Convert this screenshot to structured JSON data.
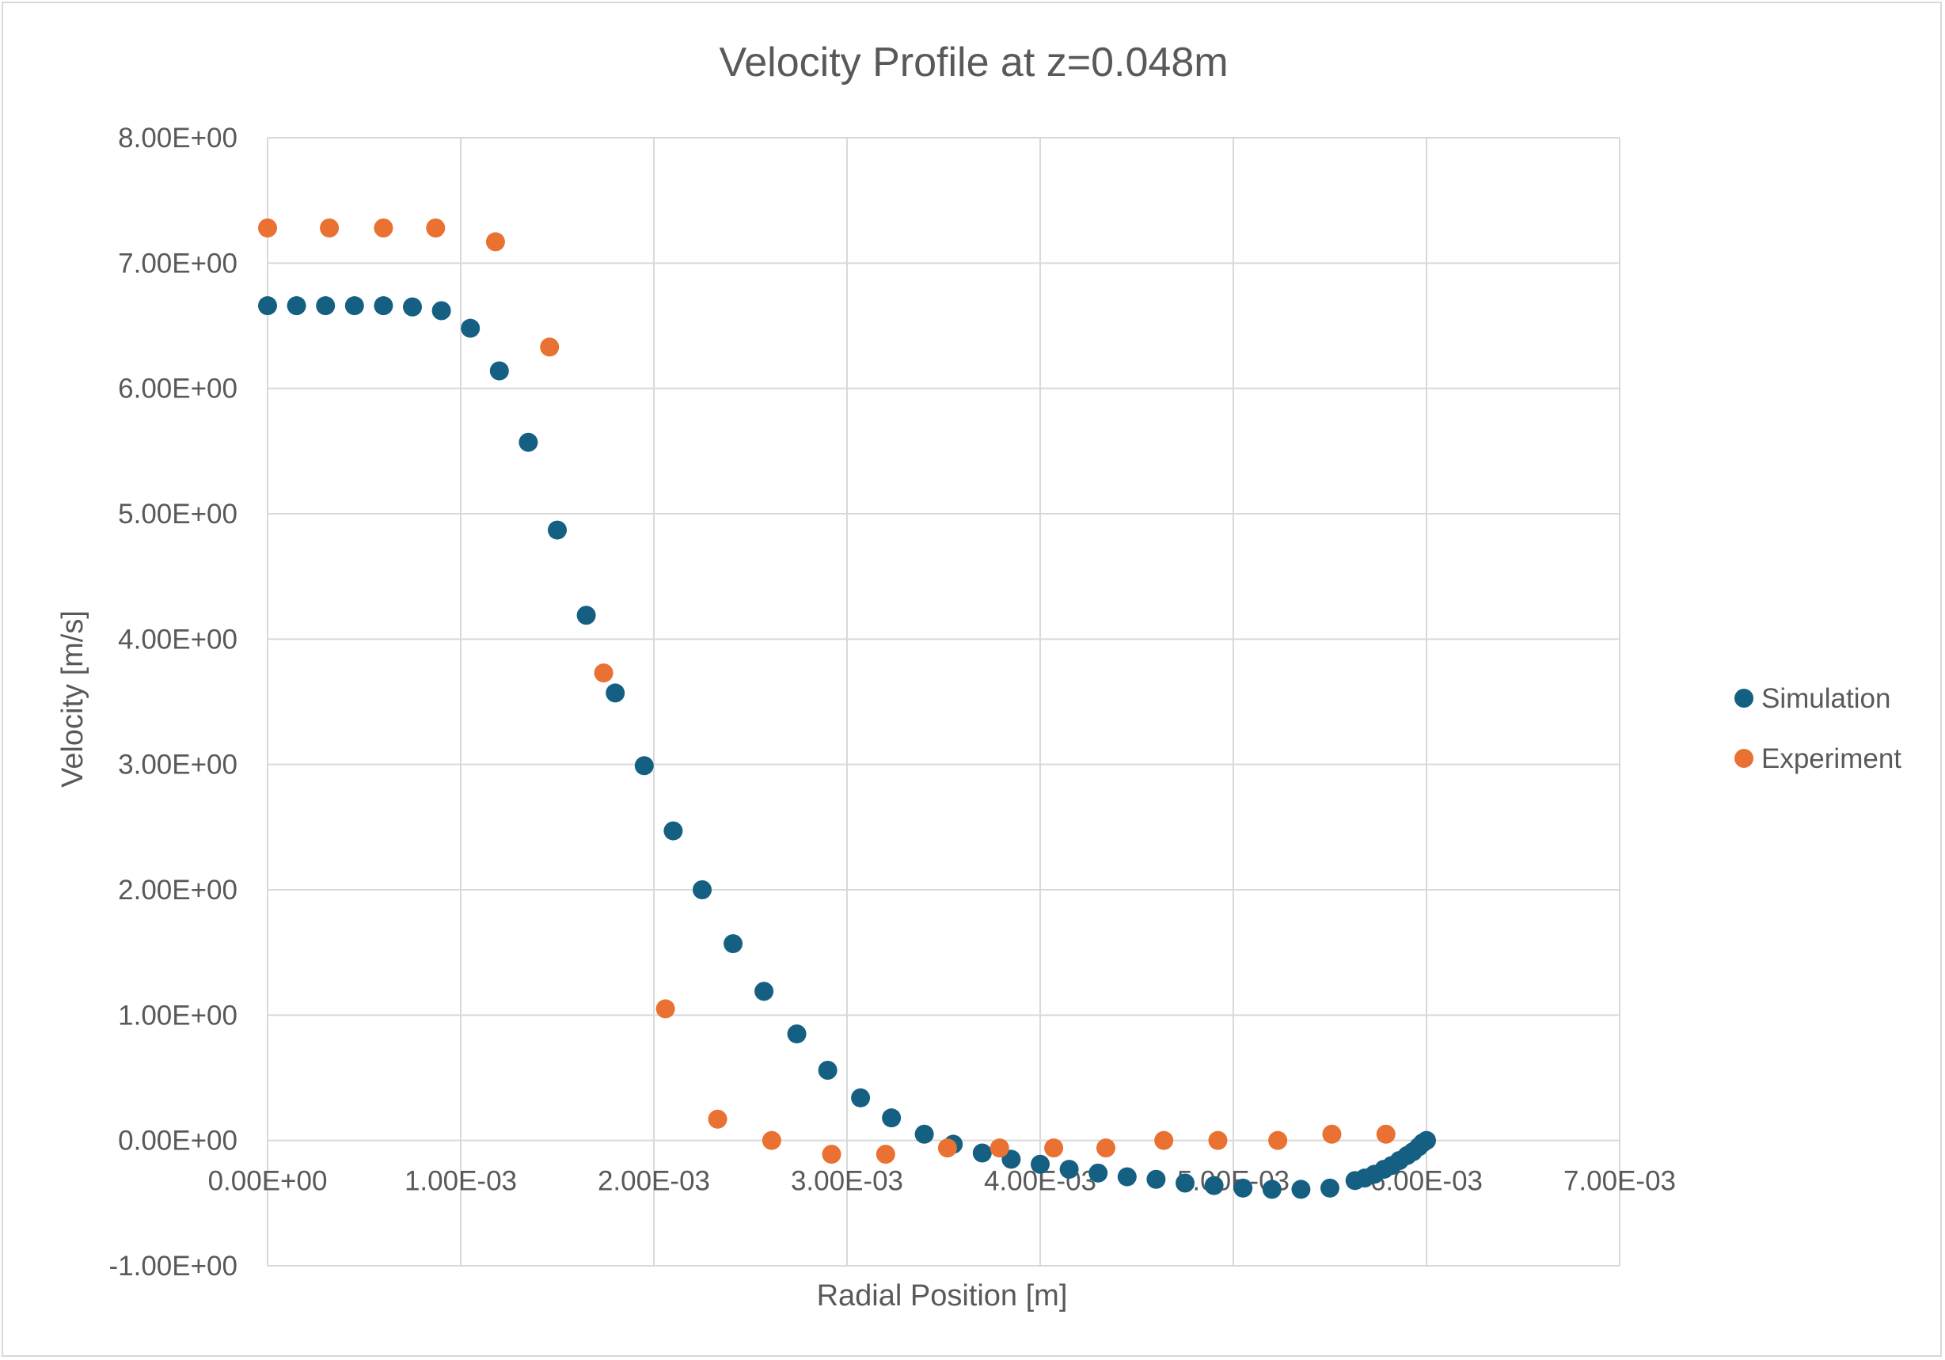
{
  "chart_data": {
    "type": "scatter",
    "title": "Velocity Profile at z=0.048m",
    "xlabel": "Radial Position [m]",
    "ylabel": "Velocity [m/s]",
    "xlim": [
      0,
      0.007
    ],
    "ylim": [
      -1,
      8
    ],
    "x_ticks": [
      0,
      0.001,
      0.002,
      0.003,
      0.004,
      0.005,
      0.006,
      0.007
    ],
    "x_tick_labels": [
      "0.00E+00",
      "1.00E-03",
      "2.00E-03",
      "3.00E-03",
      "4.00E-03",
      "5.00E-03",
      "6.00E-03",
      "7.00E-03"
    ],
    "y_ticks": [
      -1,
      0,
      1,
      2,
      3,
      4,
      5,
      6,
      7,
      8
    ],
    "y_tick_labels": [
      "-1.00E+00",
      "0.00E+00",
      "1.00E+00",
      "2.00E+00",
      "3.00E+00",
      "4.00E+00",
      "5.00E+00",
      "6.00E+00",
      "7.00E+00",
      "8.00E+00"
    ],
    "grid": true,
    "legend_position": "right",
    "series": [
      {
        "name": "Simulation",
        "color": "#156082",
        "points": [
          [
            0.0,
            6.66
          ],
          [
            0.00015,
            6.66
          ],
          [
            0.0003,
            6.66
          ],
          [
            0.00045,
            6.66
          ],
          [
            0.0006,
            6.66
          ],
          [
            0.00075,
            6.65
          ],
          [
            0.0009,
            6.62
          ],
          [
            0.00105,
            6.48
          ],
          [
            0.0012,
            6.14
          ],
          [
            0.00135,
            5.57
          ],
          [
            0.0015,
            4.87
          ],
          [
            0.00165,
            4.19
          ],
          [
            0.0018,
            3.57
          ],
          [
            0.00195,
            2.99
          ],
          [
            0.0021,
            2.47
          ],
          [
            0.00225,
            2.0
          ],
          [
            0.00241,
            1.57
          ],
          [
            0.00257,
            1.19
          ],
          [
            0.00274,
            0.85
          ],
          [
            0.0029,
            0.56
          ],
          [
            0.00307,
            0.34
          ],
          [
            0.00323,
            0.18
          ],
          [
            0.0034,
            0.05
          ],
          [
            0.00355,
            -0.03
          ],
          [
            0.0037,
            -0.1
          ],
          [
            0.00385,
            -0.15
          ],
          [
            0.004,
            -0.19
          ],
          [
            0.00415,
            -0.23
          ],
          [
            0.0043,
            -0.26
          ],
          [
            0.00445,
            -0.29
          ],
          [
            0.0046,
            -0.31
          ],
          [
            0.00475,
            -0.34
          ],
          [
            0.0049,
            -0.36
          ],
          [
            0.00505,
            -0.38
          ],
          [
            0.0052,
            -0.39
          ],
          [
            0.00535,
            -0.39
          ],
          [
            0.0055,
            -0.38
          ],
          [
            0.00563,
            -0.32
          ],
          [
            0.00568,
            -0.3
          ],
          [
            0.00573,
            -0.27
          ],
          [
            0.00578,
            -0.23
          ],
          [
            0.00582,
            -0.2
          ],
          [
            0.00586,
            -0.16
          ],
          [
            0.0059,
            -0.12
          ],
          [
            0.00593,
            -0.09
          ],
          [
            0.00596,
            -0.05
          ],
          [
            0.00598,
            -0.02
          ],
          [
            0.006,
            0.0
          ]
        ]
      },
      {
        "name": "Experiment",
        "color": "#E97132",
        "points": [
          [
            0.0,
            7.28
          ],
          [
            0.00032,
            7.28
          ],
          [
            0.0006,
            7.28
          ],
          [
            0.00087,
            7.28
          ],
          [
            0.00118,
            7.17
          ],
          [
            0.00146,
            6.33
          ],
          [
            0.00174,
            3.73
          ],
          [
            0.00206,
            1.05
          ],
          [
            0.00233,
            0.17
          ],
          [
            0.00261,
            0.0
          ],
          [
            0.00292,
            -0.11
          ],
          [
            0.0032,
            -0.11
          ],
          [
            0.00352,
            -0.06
          ],
          [
            0.00379,
            -0.06
          ],
          [
            0.00407,
            -0.06
          ],
          [
            0.00434,
            -0.06
          ],
          [
            0.00464,
            0.0
          ],
          [
            0.00492,
            0.0
          ],
          [
            0.00523,
            0.0
          ],
          [
            0.00551,
            0.05
          ],
          [
            0.00579,
            0.05
          ]
        ]
      }
    ]
  }
}
